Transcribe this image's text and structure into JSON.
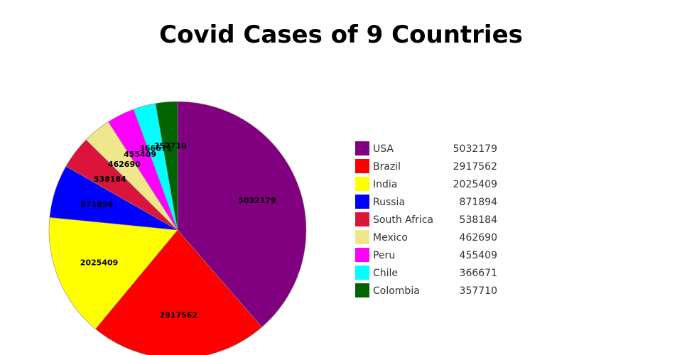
{
  "chart_data": {
    "type": "pie",
    "title": "Covid Cases of 9 Countries",
    "start_angle": "12 o'clock",
    "direction": "clockwise",
    "legend_position": "right",
    "slice_border_color": "#888888",
    "slices": [
      {
        "label": "USA",
        "value": 5032179,
        "color": "#800080"
      },
      {
        "label": "Brazil",
        "value": 2917562,
        "color": "#ff0000"
      },
      {
        "label": "India",
        "value": 2025409,
        "color": "#ffff00"
      },
      {
        "label": "Russia",
        "value": 871894,
        "color": "#0000ff"
      },
      {
        "label": "South Africa",
        "value": 538184,
        "color": "#dc143c"
      },
      {
        "label": "Mexico",
        "value": 462690,
        "color": "#f0e68c"
      },
      {
        "label": "Peru",
        "value": 455409,
        "color": "#ff00ff"
      },
      {
        "label": "Chile",
        "value": 366671,
        "color": "#00ffff"
      },
      {
        "label": "Colombia",
        "value": 357710,
        "color": "#006400"
      }
    ]
  }
}
